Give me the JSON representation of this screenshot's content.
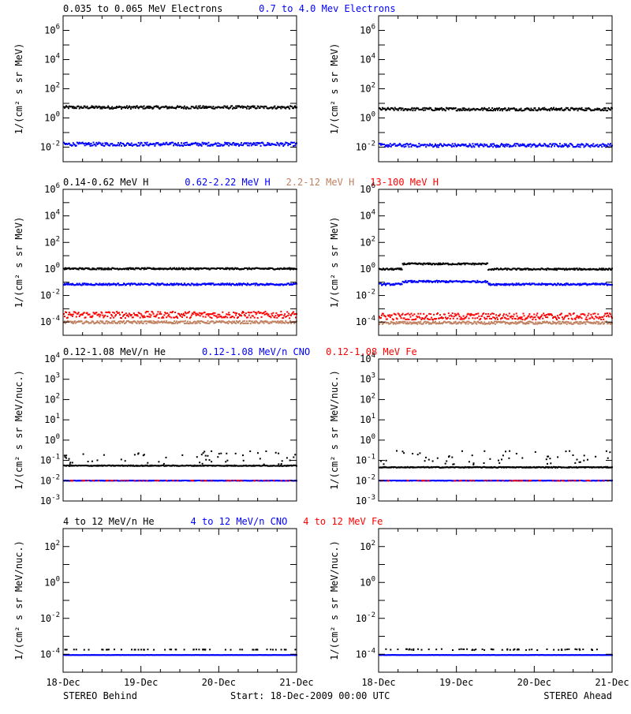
{
  "colors": {
    "black": "#000000",
    "blue": "#0000ff",
    "tan": "#c08060",
    "red": "#ff0000"
  },
  "footer": {
    "left": "STEREO Behind",
    "center": "Start: 18-Dec-2009 00:00 UTC",
    "right": "STEREO Ahead"
  },
  "x_ticks": [
    "18-Dec",
    "19-Dec",
    "20-Dec",
    "21-Dec"
  ],
  "chart_data": [
    {
      "type": "scatter",
      "id": "e-behind",
      "row": 0,
      "col": 0,
      "log_y": true,
      "ylim_exp": [
        -3,
        7
      ],
      "xlim": [
        0,
        3
      ],
      "x_unit": "days since start",
      "ylabel": "1/(cm² s sr MeV)",
      "yticks": [
        "10^-2",
        "10^0",
        "10^2",
        "10^4",
        "10^6"
      ],
      "legend": [
        {
          "text": "0.035 to 0.065 MeV Electrons",
          "color": "#000000"
        },
        {
          "text": "0.7 to 4.0 Mev Electrons",
          "color": "#0000ff"
        }
      ],
      "series": [
        {
          "color": "#000000",
          "level": 6,
          "spread": 0.1
        },
        {
          "color": "#0000ff",
          "level": 0.018,
          "spread": 0.12
        }
      ]
    },
    {
      "type": "scatter",
      "id": "e-ahead",
      "row": 0,
      "col": 1,
      "log_y": true,
      "ylim_exp": [
        -3,
        7
      ],
      "xlim": [
        0,
        3
      ],
      "ylabel": "1/(cm² s sr MeV)",
      "yticks": [
        "10^-2",
        "10^0",
        "10^2",
        "10^4",
        "10^6"
      ],
      "legend": [],
      "series": [
        {
          "color": "#000000",
          "level": 4.5,
          "spread": 0.1
        },
        {
          "color": "#0000ff",
          "level": 0.015,
          "spread": 0.12
        }
      ]
    },
    {
      "type": "scatter",
      "id": "h-behind",
      "row": 1,
      "col": 0,
      "log_y": true,
      "ylim_exp": [
        -5,
        6
      ],
      "xlim": [
        0,
        3
      ],
      "ylabel": "1/(cm² s sr MeV)",
      "yticks": [
        "10^-4",
        "10^-2",
        "10^0",
        "10^2",
        "10^4",
        "10^6"
      ],
      "legend": [
        {
          "text": "0.14-0.62 MeV H",
          "color": "#000000"
        },
        {
          "text": "0.62-2.22 MeV H",
          "color": "#0000ff"
        },
        {
          "text": "2.2-12 MeV H",
          "color": "#c08060"
        },
        {
          "text": "13-100 MeV H",
          "color": "#ff0000"
        }
      ],
      "series": [
        {
          "color": "#000000",
          "level": 1.2,
          "spread": 0.06
        },
        {
          "color": "#0000ff",
          "level": 0.08,
          "spread": 0.07
        },
        {
          "color": "#ff0000",
          "level": 0.0004,
          "spread": 0.25
        },
        {
          "color": "#c08060",
          "level": 0.00011,
          "spread": 0.1
        }
      ]
    },
    {
      "type": "scatter",
      "id": "h-ahead",
      "row": 1,
      "col": 1,
      "log_y": true,
      "ylim_exp": [
        -5,
        6
      ],
      "xlim": [
        0,
        3
      ],
      "ylabel": "1/(cm² s sr MeV)",
      "yticks": [
        "10^-4",
        "10^-2",
        "10^0",
        "10^2",
        "10^4",
        "10^6"
      ],
      "legend": [],
      "series": [
        {
          "color": "#000000",
          "level": 1.1,
          "spread": 0.06,
          "bump": [
            0.3,
            1.4,
            2.5
          ]
        },
        {
          "color": "#0000ff",
          "level": 0.08,
          "spread": 0.07,
          "bump": [
            0.3,
            1.4,
            1.6
          ]
        },
        {
          "color": "#ff0000",
          "level": 0.0003,
          "spread": 0.25
        },
        {
          "color": "#c08060",
          "level": 0.0001,
          "spread": 0.1
        }
      ]
    },
    {
      "type": "scatter",
      "id": "he-behind",
      "row": 2,
      "col": 0,
      "log_y": true,
      "ylim_exp": [
        -3,
        4
      ],
      "xlim": [
        0,
        3
      ],
      "ylabel": "1/(cm² s sr MeV/nuc.)",
      "yticks": [
        "10^-3",
        "10^-2",
        "10^-1",
        "10^0",
        "10^1",
        "10^2",
        "10^3",
        "10^4"
      ],
      "legend": [
        {
          "text": "0.12-1.08 MeV/n He",
          "color": "#000000"
        },
        {
          "text": "0.12-1.08 MeV/n CNO",
          "color": "#0000ff"
        },
        {
          "text": "0.12-1.08 MeV Fe",
          "color": "#ff0000"
        }
      ],
      "series": [
        {
          "color": "#000000",
          "level": 0.06,
          "spread": 0.02
        },
        {
          "color": "#000000",
          "level": 0.15,
          "spread": 0.35,
          "sparse": true
        },
        {
          "color": "#0000ff",
          "level": 0.011,
          "spread": 0.01
        },
        {
          "color": "#ff0000",
          "level": 0.011,
          "spread": 0.01,
          "sparse": true
        }
      ]
    },
    {
      "type": "scatter",
      "id": "he-ahead",
      "row": 2,
      "col": 1,
      "log_y": true,
      "ylim_exp": [
        -3,
        4
      ],
      "xlim": [
        0,
        3
      ],
      "ylabel": "1/(cm² s sr MeV/nuc.)",
      "yticks": [
        "10^-3",
        "10^-2",
        "10^-1",
        "10^0",
        "10^1",
        "10^2",
        "10^3",
        "10^4"
      ],
      "legend": [],
      "series": [
        {
          "color": "#000000",
          "level": 0.05,
          "spread": 0.02
        },
        {
          "color": "#000000",
          "level": 0.15,
          "spread": 0.35,
          "sparse": true
        },
        {
          "color": "#0000ff",
          "level": 0.011,
          "spread": 0.01
        },
        {
          "color": "#ff0000",
          "level": 0.011,
          "spread": 0.01,
          "sparse": true
        }
      ]
    },
    {
      "type": "scatter",
      "id": "hh-behind",
      "row": 3,
      "col": 0,
      "log_y": true,
      "ylim_exp": [
        -5,
        3
      ],
      "xlim": [
        0,
        3
      ],
      "ylabel": "1/(cm² s sr MeV/nuc.)",
      "yticks": [
        "10^-4",
        "10^-2",
        "10^0",
        "10^2"
      ],
      "legend": [
        {
          "text": "4 to 12 MeV/n He",
          "color": "#000000"
        },
        {
          "text": "4 to 12 MeV/n CNO",
          "color": "#0000ff"
        },
        {
          "text": "4 to 12 MeV Fe",
          "color": "#ff0000"
        }
      ],
      "series": [
        {
          "color": "#0000ff",
          "level": 0.0001,
          "spread": 0.005
        },
        {
          "color": "#000000",
          "level": 0.0002,
          "spread": 0.01,
          "sparse": true
        },
        {
          "color": "#0000ff",
          "level": 8e-06,
          "spread": 0.01,
          "sparse": true
        }
      ]
    },
    {
      "type": "scatter",
      "id": "hh-ahead",
      "row": 3,
      "col": 1,
      "log_y": true,
      "ylim_exp": [
        -5,
        3
      ],
      "xlim": [
        0,
        3
      ],
      "ylabel": "1/(cm² s sr MeV/nuc.)",
      "yticks": [
        "10^-4",
        "10^-2",
        "10^0",
        "10^2"
      ],
      "legend": [],
      "series": [
        {
          "color": "#0000ff",
          "level": 0.0001,
          "spread": 0.005
        },
        {
          "color": "#000000",
          "level": 0.0002,
          "spread": 0.03,
          "sparse": true
        },
        {
          "color": "#0000ff",
          "level": 8e-06,
          "spread": 0.01,
          "sparse": true
        }
      ]
    }
  ]
}
